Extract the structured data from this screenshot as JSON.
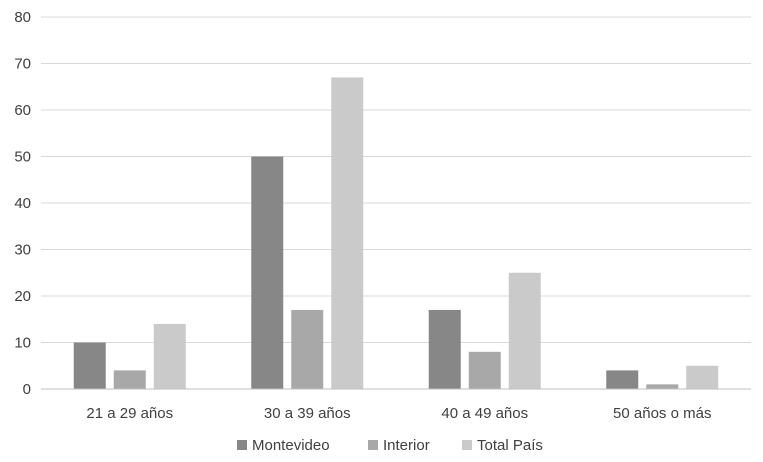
{
  "chart_data": {
    "type": "bar",
    "categories": [
      "21 a 29 años",
      "30 a 39 años",
      "40 a 49 años",
      "50 años o más"
    ],
    "series": [
      {
        "name": "Montevideo",
        "values": [
          10,
          50,
          17,
          4
        ],
        "color": "#878787"
      },
      {
        "name": "Interior",
        "values": [
          4,
          17,
          8,
          1
        ],
        "color": "#a8a8a8"
      },
      {
        "name": "Total País",
        "values": [
          14,
          67,
          25,
          5
        ],
        "color": "#cacaca"
      }
    ],
    "ylim": [
      0,
      80
    ],
    "yticks": [
      0,
      10,
      20,
      30,
      40,
      50,
      60,
      70,
      80
    ],
    "grid": true,
    "legend_position": "bottom"
  }
}
